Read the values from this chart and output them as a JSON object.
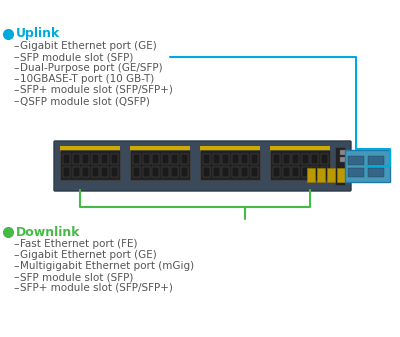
{
  "uplink_title": "Uplink",
  "uplink_bullet_color": "#00aadd",
  "uplink_items": [
    "Gigabit Ethernet port (GE)",
    "SFP module slot (SFP)",
    "Dual-Purpose port (GE/SFP)",
    "10GBASE-T port (10 GB-T)",
    "SFP+ module slot (SFP/SFP+)",
    "QSFP module slot (QSFP)"
  ],
  "downlink_title": "Downlink",
  "downlink_bullet_color": "#44bb44",
  "downlink_items": [
    "Fast Ethernet port (FE)",
    "Gigabit Ethernet port (GE)",
    "Multigigabit Ethernet port (mGig)",
    "SFP module slot (SFP)",
    "SFP+ module slot (SFP/SFP+)"
  ],
  "text_color": "#555555",
  "title_color": "#00aadd",
  "downlink_title_color": "#44bb44",
  "line_color_uplink": "#00aadd",
  "line_color_downlink": "#44bb44",
  "bg_color": "#ffffff"
}
